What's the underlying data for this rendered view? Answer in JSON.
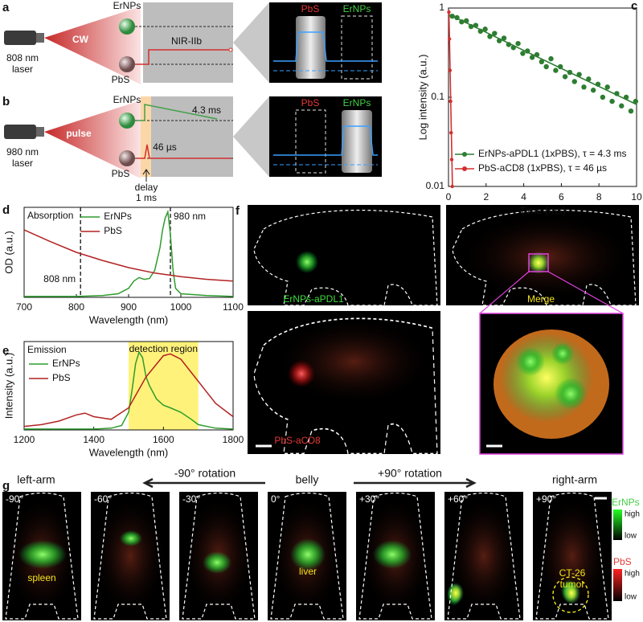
{
  "panels": {
    "a": {
      "label": "a",
      "ernps": "ErNPs",
      "laser": [
        "808 nm",
        "laser"
      ],
      "mode": "CW",
      "pbs": "PbS",
      "signal": "NIR-IIb",
      "inset": [
        "PbS",
        "ErNPs"
      ]
    },
    "b": {
      "label": "b",
      "ernps": "ErNPs",
      "laser": [
        "980 nm",
        "laser"
      ],
      "mode": "pulse",
      "pbs": "PbS",
      "ernps_lifetime": "4.3 ms",
      "pbs_lifetime": "46 µs",
      "delay": [
        "delay",
        "1 ms"
      ],
      "inset": [
        "PbS",
        "ErNPs"
      ]
    },
    "f": {
      "label": "f",
      "images": [
        "ErNPs-aPDL1",
        "Merge",
        "PbS-aCD8"
      ]
    },
    "g": {
      "label": "g",
      "views": [
        "left-arm",
        "belly",
        "right-arm"
      ],
      "rotations": [
        "-90° rotation",
        "+90° rotation"
      ],
      "angles": [
        "-90°",
        "-60°",
        "-30°",
        "0°",
        "+30°",
        "+60°",
        "+90°"
      ],
      "organs": [
        "spleen",
        "liver"
      ],
      "tumor": [
        "CT-26",
        "tumor"
      ],
      "colorbars": [
        {
          "name": "ErNPs",
          "high": "high",
          "low": "low"
        },
        {
          "name": "PbS",
          "high": "high",
          "low": "low"
        }
      ]
    }
  },
  "chart_data": [
    {
      "type": "scatter",
      "panel_label": "c",
      "xlabel": "Time (ms)",
      "ylabel": "Log intensity (a.u.)",
      "xlim": [
        0,
        10
      ],
      "ylim": [
        0.01,
        1
      ],
      "log_y": true,
      "xticks": [
        0,
        2,
        4,
        6,
        8,
        10
      ],
      "yticks": [
        0.01,
        0.1,
        1
      ],
      "legend": "lower left",
      "series": [
        {
          "name": "ErNPs-aPDL1 (1xPBS), τ = 4.3 ms",
          "color": "#2e7d32",
          "x": [
            0.2,
            0.45,
            0.7,
            0.95,
            1.2,
            1.45,
            1.7,
            1.95,
            2.2,
            2.45,
            2.7,
            2.95,
            3.2,
            3.45,
            3.7,
            3.95,
            4.2,
            4.45,
            4.7,
            4.95,
            5.2,
            5.45,
            5.7,
            5.95,
            6.2,
            6.45,
            6.7,
            6.95,
            7.2,
            7.45,
            7.7,
            7.95,
            8.2,
            8.45,
            8.7,
            8.95,
            9.2,
            9.45,
            9.7,
            9.95
          ],
          "values": [
            0.81,
            0.78,
            0.7,
            0.72,
            0.62,
            0.64,
            0.55,
            0.58,
            0.48,
            0.52,
            0.43,
            0.46,
            0.39,
            0.36,
            0.4,
            0.31,
            0.33,
            0.28,
            0.3,
            0.25,
            0.22,
            0.27,
            0.2,
            0.22,
            0.17,
            0.19,
            0.15,
            0.18,
            0.13,
            0.16,
            0.12,
            0.14,
            0.1,
            0.13,
            0.09,
            0.11,
            0.08,
            0.1,
            0.07,
            0.09
          ],
          "fit_x": [
            0,
            10
          ],
          "fit_values": [
            0.85,
            0.083
          ]
        },
        {
          "name": "PbS-aCD8 (1xPBS), τ = 46 µs",
          "color": "#d32f2f",
          "x": [
            0.02,
            0.05,
            0.08,
            0.11,
            0.14,
            0.17,
            0.2
          ],
          "values": [
            0.9,
            0.45,
            0.2,
            0.09,
            0.04,
            0.02,
            0.01
          ],
          "fit_x": [
            0.02,
            0.21
          ],
          "fit_values": [
            0.95,
            0.01
          ]
        }
      ]
    },
    {
      "type": "line",
      "panel_label": "d",
      "xlabel": "Wavelength (nm)",
      "ylabel": "OD (a.u.)",
      "annotation": "Absorption",
      "xlim": [
        700,
        1100
      ],
      "ylim": [
        0,
        1
      ],
      "xticks": [
        700,
        800,
        900,
        1000,
        1100
      ],
      "legend": "upper center",
      "vlines": [
        {
          "x": 808,
          "label": "808 nm"
        },
        {
          "x": 980,
          "label": "980 nm"
        }
      ],
      "series": [
        {
          "name": "ErNPs",
          "color": "#2e9c2e",
          "x": [
            700,
            750,
            800,
            850,
            880,
            900,
            910,
            920,
            930,
            940,
            950,
            960,
            965,
            970,
            975,
            980,
            985,
            990,
            1000,
            1050,
            1100
          ],
          "values": [
            0.01,
            0.01,
            0.01,
            0.02,
            0.04,
            0.1,
            0.18,
            0.22,
            0.2,
            0.21,
            0.3,
            0.55,
            0.75,
            0.88,
            0.95,
            0.7,
            0.3,
            0.1,
            0.04,
            0.02,
            0.01
          ]
        },
        {
          "name": "PbS",
          "color": "#b22222",
          "x": [
            700,
            750,
            800,
            850,
            900,
            950,
            1000,
            1050,
            1100
          ],
          "values": [
            0.75,
            0.62,
            0.5,
            0.41,
            0.33,
            0.27,
            0.23,
            0.2,
            0.18
          ]
        }
      ]
    },
    {
      "type": "line",
      "panel_label": "e",
      "xlabel": "Wavelength (nm)",
      "ylabel": "Intensity (a.u.)",
      "annotation": "Emission",
      "xlim": [
        1200,
        1800
      ],
      "ylim": [
        0,
        1
      ],
      "xticks": [
        1200,
        1400,
        1600,
        1800
      ],
      "legend": "upper left",
      "span": {
        "x": [
          1500,
          1700
        ],
        "label": "detection region",
        "color": "#fff27a"
      },
      "series": [
        {
          "name": "ErNPs",
          "color": "#2e9c2e",
          "x": [
            1200,
            1300,
            1400,
            1450,
            1480,
            1500,
            1510,
            1520,
            1530,
            1540,
            1550,
            1560,
            1580,
            1600,
            1620,
            1650,
            1680,
            1700,
            1750,
            1800
          ],
          "values": [
            0.01,
            0.01,
            0.01,
            0.02,
            0.05,
            0.2,
            0.45,
            0.75,
            0.88,
            0.82,
            0.6,
            0.5,
            0.35,
            0.28,
            0.25,
            0.2,
            0.12,
            0.06,
            0.02,
            0.01
          ]
        },
        {
          "name": "PbS",
          "color": "#b22222",
          "x": [
            1200,
            1250,
            1300,
            1350,
            1375,
            1400,
            1450,
            1500,
            1550,
            1600,
            1620,
            1650,
            1700,
            1750,
            1800
          ],
          "values": [
            0.04,
            0.06,
            0.1,
            0.17,
            0.19,
            0.15,
            0.12,
            0.25,
            0.6,
            0.84,
            0.86,
            0.8,
            0.55,
            0.3,
            0.15
          ]
        }
      ]
    }
  ]
}
